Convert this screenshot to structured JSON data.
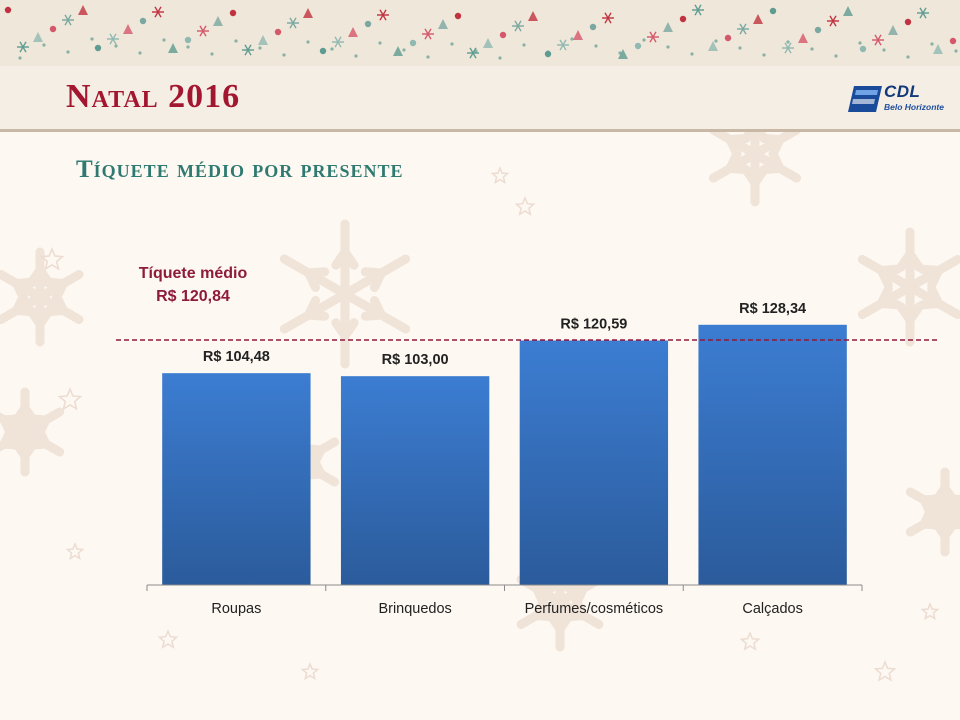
{
  "slide": {
    "title": "Natal 2016",
    "subtitle": "Tíquete médio por presente"
  },
  "logo": {
    "name": "CDL",
    "city": "Belo Horizonte"
  },
  "colors": {
    "title": "#a3162f",
    "subtitle": "#2e7a70",
    "bar_top": "#3b7bcf",
    "bar_bottom": "#2b5c9c",
    "average_line": "#8e1a3c"
  },
  "chart_data": {
    "type": "bar",
    "categories": [
      "Roupas",
      "Brinquedos",
      "Perfumes/cosméticos",
      "Calçados"
    ],
    "values": [
      104.48,
      103.0,
      120.59,
      128.34
    ],
    "value_labels": [
      "R$ 104,48",
      "R$ 103,00",
      "R$ 120,59",
      "R$ 128,34"
    ],
    "ylim": [
      0,
      145.5
    ],
    "grid": false,
    "average": {
      "value": 120.84,
      "label_line1": "Tíquete médio",
      "label_line2": "R$ 120,84"
    }
  }
}
